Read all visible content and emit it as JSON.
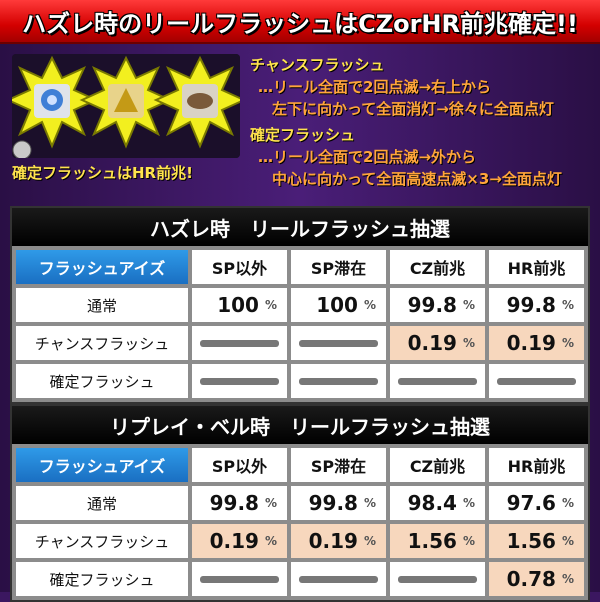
{
  "banner": {
    "title": "ハズレ時のリールフラッシュはCZorHR前兆確定!!"
  },
  "reel_image": {
    "caption": "確定フラッシュはHR前兆!"
  },
  "descriptions": [
    {
      "heading": "チャンスフラッシュ",
      "lines": [
        "…リール全面で2回点滅→右上から",
        "左下に向かって全面消灯→徐々に全面点灯"
      ]
    },
    {
      "heading": "確定フラッシュ",
      "lines": [
        "…リール全面で2回点滅→外から",
        "中心に向かって全面高速点滅×3→全面点灯"
      ]
    }
  ],
  "unit": "%",
  "tables": [
    {
      "title": "ハズレ時　リールフラッシュ抽選",
      "corner": "フラッシュアイズ",
      "columns": [
        "SP以外",
        "SP滞在",
        "CZ前兆",
        "HR前兆"
      ],
      "rows": [
        {
          "label": "通常",
          "values": [
            "100",
            "100",
            "99.8",
            "99.8"
          ],
          "highlight": [
            false,
            false,
            false,
            false
          ]
        },
        {
          "label": "チャンスフラッシュ",
          "values": [
            null,
            null,
            "0.19",
            "0.19"
          ],
          "highlight": [
            false,
            false,
            true,
            true
          ]
        },
        {
          "label": "確定フラッシュ",
          "values": [
            null,
            null,
            null,
            null
          ],
          "highlight": [
            false,
            false,
            false,
            false
          ]
        }
      ]
    },
    {
      "title": "リプレイ・ベル時　リールフラッシュ抽選",
      "corner": "フラッシュアイズ",
      "columns": [
        "SP以外",
        "SP滞在",
        "CZ前兆",
        "HR前兆"
      ],
      "rows": [
        {
          "label": "通常",
          "values": [
            "99.8",
            "99.8",
            "98.4",
            "97.6"
          ],
          "highlight": [
            false,
            false,
            false,
            false
          ]
        },
        {
          "label": "チャンスフラッシュ",
          "values": [
            "0.19",
            "0.19",
            "1.56",
            "1.56"
          ],
          "highlight": [
            true,
            true,
            true,
            true
          ]
        },
        {
          "label": "確定フラッシュ",
          "values": [
            null,
            null,
            null,
            "0.78"
          ],
          "highlight": [
            false,
            false,
            false,
            true
          ]
        }
      ]
    }
  ],
  "colors": {
    "banner": "#d40000",
    "corner": "#1a6fc2",
    "highlight": "#f7d7bd",
    "caption": "#ffe34d"
  }
}
